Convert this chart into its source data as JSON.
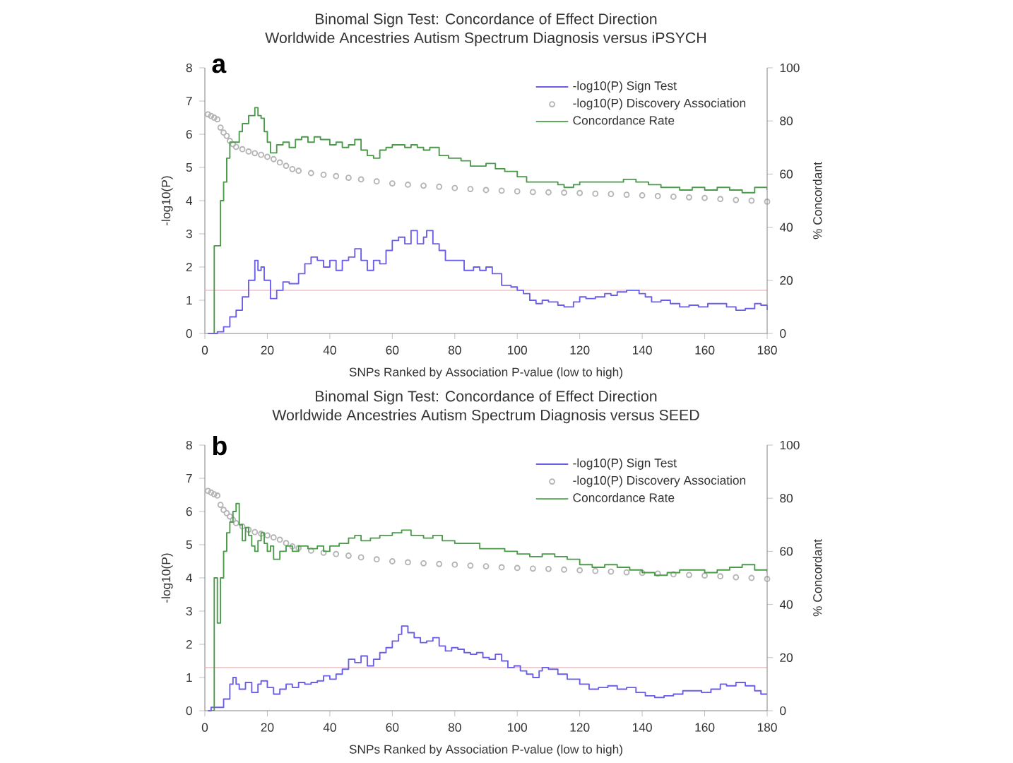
{
  "chart_data": [
    {
      "type": "step",
      "title": "Binomal Sign Test: Concordance of Effect Direction",
      "subtitle": "Worldwide Ancestries Autism Spectrum Diagnosis versus iPSYCH",
      "xlabel": "SNPs Ranked by Association P-value (low to high)",
      "ylabel": "-log10(P)",
      "y2label": "% Concordant",
      "annotations": [
        "a"
      ],
      "xlim": [
        0,
        180
      ],
      "xticks": [
        0,
        20,
        40,
        60,
        80,
        100,
        120,
        140,
        160,
        180
      ],
      "ylim": [
        0,
        8
      ],
      "yticks": [
        0,
        1,
        2,
        3,
        4,
        5,
        6,
        7,
        8
      ],
      "y2lim": [
        0,
        100
      ],
      "y2ticks": [
        0,
        20,
        40,
        60,
        80,
        100
      ],
      "legend": "top right",
      "marker": "none",
      "ref_lines": [
        {
          "axis": "y",
          "value": 1.3,
          "color": "#e8b4bc"
        }
      ],
      "series": [
        {
          "name": "-log10(P) Sign Test",
          "color": "#6a5ee6",
          "x": [
            1,
            3,
            4,
            6,
            8,
            10,
            12,
            14,
            16,
            17,
            18,
            19,
            21,
            23,
            25,
            27,
            30,
            32,
            34,
            36,
            38,
            40,
            42,
            44,
            46,
            48,
            50,
            52,
            54,
            56,
            58,
            60,
            62,
            64,
            66,
            68,
            70,
            71,
            73,
            75,
            77,
            80,
            83,
            86,
            88,
            90,
            92,
            95,
            98,
            100,
            102,
            104,
            106,
            108,
            110,
            113,
            115,
            118,
            120,
            122,
            125,
            128,
            130,
            132,
            135,
            137,
            139,
            141,
            143,
            146,
            149,
            152,
            155,
            158,
            161,
            164,
            167,
            170,
            173,
            176,
            178,
            180
          ],
          "values": [
            0,
            0,
            0.05,
            0.2,
            0.5,
            0.7,
            1.1,
            1.6,
            2.2,
            1.9,
            2.0,
            1.6,
            1.05,
            1.3,
            1.55,
            1.5,
            1.8,
            2.1,
            2.3,
            2.2,
            2.0,
            2.2,
            1.9,
            2.2,
            2.3,
            2.55,
            2.2,
            1.9,
            2.2,
            2.1,
            2.5,
            2.8,
            2.9,
            2.7,
            3.1,
            2.7,
            2.9,
            3.1,
            2.7,
            2.5,
            2.2,
            2.2,
            1.9,
            2.0,
            1.9,
            2.0,
            1.8,
            1.45,
            1.4,
            1.3,
            1.2,
            1.0,
            0.9,
            1.0,
            0.95,
            0.85,
            0.8,
            0.95,
            1.1,
            1.05,
            1.1,
            1.2,
            1.15,
            1.25,
            1.3,
            1.3,
            1.2,
            1.1,
            0.95,
            1.0,
            0.9,
            0.8,
            0.85,
            0.8,
            0.9,
            0.9,
            0.8,
            0.7,
            0.75,
            0.9,
            0.85,
            0.7
          ]
        },
        {
          "name": "-log10(P) Discovery Association",
          "color": "#b4b4b4",
          "type": "scatter",
          "marker": "circle",
          "x": [
            1,
            2,
            3,
            4,
            5,
            6,
            7,
            8,
            9,
            10,
            12,
            14,
            16,
            18,
            20,
            22,
            24,
            26,
            28,
            30,
            34,
            38,
            42,
            46,
            50,
            55,
            60,
            65,
            70,
            75,
            80,
            85,
            90,
            95,
            100,
            105,
            110,
            115,
            120,
            125,
            130,
            135,
            140,
            145,
            150,
            155,
            160,
            165,
            170,
            175,
            180
          ],
          "values": [
            6.6,
            6.55,
            6.5,
            6.45,
            6.2,
            6.05,
            5.95,
            5.8,
            5.7,
            5.62,
            5.55,
            5.48,
            5.43,
            5.38,
            5.32,
            5.25,
            5.15,
            5.05,
            4.95,
            4.9,
            4.83,
            4.78,
            4.74,
            4.69,
            4.64,
            4.58,
            4.52,
            4.48,
            4.45,
            4.42,
            4.38,
            4.35,
            4.32,
            4.3,
            4.28,
            4.26,
            4.25,
            4.24,
            4.23,
            4.21,
            4.2,
            4.18,
            4.16,
            4.14,
            4.12,
            4.1,
            4.08,
            4.05,
            4.02,
            4.0,
            3.97
          ]
        },
        {
          "name": "Concordance Rate",
          "color": "#4a9a4a",
          "axis": "y2",
          "x": [
            1,
            2,
            3,
            5,
            6,
            7,
            8,
            10,
            11,
            12,
            14,
            16,
            17,
            18,
            19,
            20,
            21,
            23,
            25,
            27,
            29,
            31,
            33,
            35,
            37,
            40,
            42,
            44,
            46,
            48,
            50,
            52,
            54,
            56,
            58,
            60,
            62,
            64,
            66,
            68,
            70,
            72,
            75,
            78,
            80,
            82,
            85,
            88,
            90,
            93,
            96,
            100,
            103,
            106,
            110,
            113,
            115,
            118,
            120,
            124,
            127,
            130,
            134,
            138,
            142,
            146,
            150,
            152,
            156,
            160,
            164,
            168,
            172,
            176,
            180
          ],
          "values": [
            0,
            0,
            33,
            50,
            57,
            66,
            72,
            72,
            76,
            79,
            82,
            85,
            82,
            81,
            76,
            72,
            68,
            71,
            72,
            70,
            73,
            74,
            72,
            74,
            73,
            71,
            72,
            70,
            71,
            73,
            69,
            67,
            66,
            69,
            70,
            71,
            71,
            70,
            71,
            70,
            69,
            70,
            67,
            66,
            66,
            65,
            63,
            63,
            64,
            62,
            61,
            59,
            57,
            57,
            57,
            56,
            55,
            56,
            57,
            57,
            57,
            57,
            58,
            57,
            56,
            55,
            55,
            54,
            55,
            54,
            55,
            54,
            53,
            55,
            54
          ]
        }
      ]
    },
    {
      "type": "step",
      "title": "Binomal Sign Test: Concordance of Effect Direction",
      "subtitle": "Worldwide Ancestries Autism Spectrum Diagnosis versus SEED",
      "xlabel": "SNPs Ranked by Association P-value (low to high)",
      "ylabel": "-log10(P)",
      "y2label": "% Concordant",
      "annotations": [
        "b"
      ],
      "xlim": [
        0,
        180
      ],
      "xticks": [
        0,
        20,
        40,
        60,
        80,
        100,
        120,
        140,
        160,
        180
      ],
      "ylim": [
        0,
        8
      ],
      "yticks": [
        0,
        1,
        2,
        3,
        4,
        5,
        6,
        7,
        8
      ],
      "y2lim": [
        0,
        100
      ],
      "y2ticks": [
        0,
        20,
        40,
        60,
        80,
        100
      ],
      "legend": "top right",
      "marker": "none",
      "ref_lines": [
        {
          "axis": "y",
          "value": 1.3,
          "color": "#e8b4bc"
        }
      ],
      "series": [
        {
          "name": "-log10(P) Sign Test",
          "color": "#6a5ee6",
          "x": [
            1,
            2,
            4,
            6,
            8,
            9,
            10,
            11,
            13,
            15,
            17,
            18,
            20,
            22,
            24,
            26,
            28,
            30,
            32,
            34,
            36,
            38,
            40,
            42,
            44,
            46,
            48,
            50,
            52,
            54,
            56,
            58,
            60,
            62,
            63,
            65,
            67,
            69,
            71,
            73,
            75,
            77,
            79,
            81,
            83,
            85,
            87,
            89,
            91,
            93,
            95,
            97,
            99,
            101,
            103,
            105,
            107,
            108,
            110,
            113,
            116,
            118,
            120,
            123,
            126,
            129,
            132,
            135,
            138,
            141,
            144,
            147,
            150,
            153,
            156,
            159,
            162,
            165,
            167,
            170,
            173,
            176,
            178,
            180
          ],
          "values": [
            0,
            0.1,
            0.1,
            0.35,
            0.8,
            1.0,
            0.8,
            0.65,
            0.85,
            0.55,
            0.8,
            0.9,
            0.7,
            0.5,
            0.65,
            0.8,
            0.7,
            0.85,
            0.8,
            0.85,
            0.9,
            1.05,
            0.95,
            1.1,
            1.25,
            1.55,
            1.45,
            1.65,
            1.35,
            1.55,
            1.75,
            1.9,
            2.1,
            2.3,
            2.55,
            2.35,
            2.2,
            2.05,
            2.1,
            2.2,
            1.95,
            1.8,
            1.9,
            1.85,
            1.75,
            1.7,
            1.75,
            1.6,
            1.55,
            1.7,
            1.5,
            1.3,
            1.35,
            1.2,
            1.1,
            1.0,
            1.2,
            1.3,
            1.25,
            1.1,
            0.95,
            0.95,
            0.8,
            0.65,
            0.7,
            0.75,
            0.65,
            0.7,
            0.55,
            0.45,
            0.4,
            0.45,
            0.5,
            0.6,
            0.6,
            0.55,
            0.65,
            0.8,
            0.75,
            0.85,
            0.75,
            0.6,
            0.5,
            0.5
          ]
        },
        {
          "name": "-log10(P) Discovery Association",
          "color": "#b4b4b4",
          "type": "scatter",
          "marker": "circle",
          "x": [
            1,
            2,
            3,
            4,
            5,
            6,
            7,
            8,
            9,
            10,
            12,
            14,
            16,
            18,
            20,
            22,
            24,
            26,
            28,
            30,
            34,
            38,
            42,
            46,
            50,
            55,
            60,
            65,
            70,
            75,
            80,
            85,
            90,
            95,
            100,
            105,
            110,
            115,
            120,
            125,
            130,
            135,
            140,
            145,
            150,
            155,
            160,
            165,
            170,
            175,
            180
          ],
          "values": [
            6.62,
            6.57,
            6.52,
            6.48,
            6.2,
            6.05,
            5.95,
            5.85,
            5.75,
            5.65,
            5.55,
            5.45,
            5.38,
            5.33,
            5.28,
            5.22,
            5.15,
            5.05,
            4.95,
            4.9,
            4.82,
            4.76,
            4.72,
            4.67,
            4.62,
            4.56,
            4.5,
            4.47,
            4.44,
            4.42,
            4.4,
            4.37,
            4.35,
            4.32,
            4.3,
            4.28,
            4.27,
            4.25,
            4.23,
            4.21,
            4.19,
            4.17,
            4.15,
            4.13,
            4.11,
            4.09,
            4.07,
            4.05,
            4.02,
            4.0,
            3.97
          ]
        },
        {
          "name": "Concordance Rate",
          "color": "#4a9a4a",
          "axis": "y2",
          "x": [
            1,
            2,
            3,
            4,
            5,
            6,
            7,
            8,
            9,
            10,
            11,
            12,
            13,
            14,
            15,
            16,
            17,
            18,
            19,
            20,
            21,
            22,
            24,
            26,
            28,
            30,
            33,
            36,
            38,
            40,
            43,
            46,
            48,
            50,
            53,
            56,
            60,
            63,
            66,
            70,
            73,
            76,
            80,
            84,
            88,
            92,
            96,
            100,
            104,
            108,
            112,
            116,
            120,
            124,
            128,
            132,
            136,
            140,
            144,
            148,
            152,
            156,
            160,
            164,
            168,
            172,
            176,
            180
          ],
          "values": [
            0,
            0,
            50,
            33,
            50,
            60,
            67,
            71,
            75,
            78,
            70,
            64,
            69,
            66,
            62,
            60,
            64,
            67,
            63,
            60,
            62,
            57,
            60,
            62,
            60,
            62,
            61,
            62,
            60,
            62,
            63,
            65,
            66,
            64,
            65,
            66,
            67,
            68,
            66,
            65,
            66,
            64,
            63,
            63,
            61,
            61,
            60,
            59,
            58,
            59,
            58,
            57,
            55,
            54,
            55,
            54,
            53,
            52,
            51,
            52,
            53,
            53,
            52,
            53,
            54,
            55,
            53,
            52
          ]
        }
      ]
    }
  ]
}
